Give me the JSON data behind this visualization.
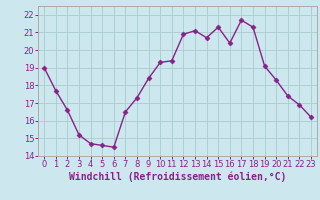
{
  "x": [
    0,
    1,
    2,
    3,
    4,
    5,
    6,
    7,
    8,
    9,
    10,
    11,
    12,
    13,
    14,
    15,
    16,
    17,
    18,
    19,
    20,
    21,
    22,
    23
  ],
  "y": [
    19.0,
    17.7,
    16.6,
    15.2,
    14.7,
    14.6,
    14.5,
    16.5,
    17.3,
    18.4,
    19.3,
    19.4,
    20.9,
    21.1,
    20.7,
    21.3,
    20.4,
    21.7,
    21.3,
    19.1,
    18.3,
    17.4,
    16.9,
    16.2
  ],
  "line_color": "#882288",
  "marker": "D",
  "marker_size": 2.5,
  "line_width": 1.0,
  "bg_color": "#cce8ee",
  "grid_color": "#aacccc",
  "spine_color": "#aaaaaa",
  "xlabel": "Windchill (Refroidissement éolien,°C)",
  "xlabel_color": "#882288",
  "xlabel_fontsize": 7,
  "tick_color": "#882288",
  "tick_fontsize": 6,
  "xlim": [
    -0.5,
    23.5
  ],
  "ylim": [
    14,
    22.5
  ],
  "yticks": [
    14,
    15,
    16,
    17,
    18,
    19,
    20,
    21,
    22
  ],
  "xticks": [
    0,
    1,
    2,
    3,
    4,
    5,
    6,
    7,
    8,
    9,
    10,
    11,
    12,
    13,
    14,
    15,
    16,
    17,
    18,
    19,
    20,
    21,
    22,
    23
  ]
}
